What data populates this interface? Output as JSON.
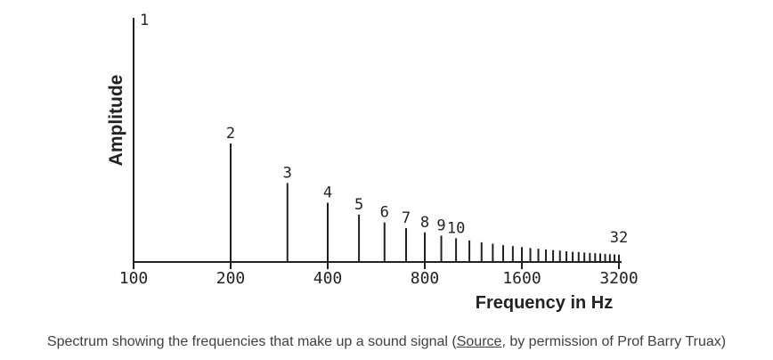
{
  "chart_data": {
    "type": "bar",
    "subtype": "line-spectrum",
    "xlabel": "Frequency in Hz",
    "ylabel": "Amplitude",
    "x_scale": "log2",
    "x_ticks": [
      100,
      200,
      400,
      800,
      1600,
      3200
    ],
    "xlim": [
      100,
      3200
    ],
    "grid": false,
    "series": [
      {
        "harmonic_labels": [
          "1",
          "2",
          "3",
          "4",
          "5",
          "6",
          "7",
          "8",
          "9",
          "10",
          "32"
        ],
        "x": [
          100,
          200,
          300,
          400,
          500,
          600,
          700,
          800,
          900,
          1000,
          1100,
          1200,
          1300,
          1400,
          1500,
          1600,
          1700,
          1800,
          1900,
          2000,
          2100,
          2200,
          2300,
          2400,
          2500,
          2600,
          2700,
          2800,
          2900,
          3000,
          3100,
          3200
        ],
        "y": [
          1.0,
          0.5,
          0.333,
          0.25,
          0.2,
          0.167,
          0.143,
          0.125,
          0.111,
          0.1,
          0.091,
          0.083,
          0.077,
          0.071,
          0.067,
          0.063,
          0.059,
          0.056,
          0.053,
          0.05,
          0.048,
          0.045,
          0.043,
          0.042,
          0.04,
          0.038,
          0.037,
          0.036,
          0.034,
          0.033,
          0.032,
          0.031
        ]
      }
    ]
  },
  "caption": {
    "before": "Spectrum showing the frequencies that make up a sound signal (",
    "link": "Source",
    "after": ", by permission of Prof Barry Truax)"
  }
}
